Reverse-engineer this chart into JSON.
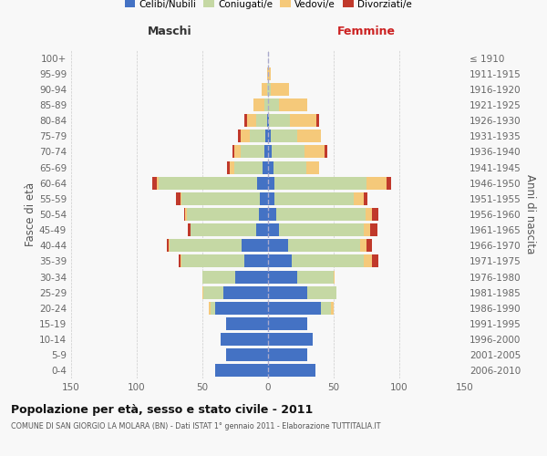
{
  "age_groups": [
    "0-4",
    "5-9",
    "10-14",
    "15-19",
    "20-24",
    "25-29",
    "30-34",
    "35-39",
    "40-44",
    "45-49",
    "50-54",
    "55-59",
    "60-64",
    "65-69",
    "70-74",
    "75-79",
    "80-84",
    "85-89",
    "90-94",
    "95-99",
    "100+"
  ],
  "birth_years": [
    "2006-2010",
    "2001-2005",
    "1996-2000",
    "1991-1995",
    "1986-1990",
    "1981-1985",
    "1976-1980",
    "1971-1975",
    "1966-1970",
    "1961-1965",
    "1956-1960",
    "1951-1955",
    "1946-1950",
    "1941-1945",
    "1936-1940",
    "1931-1935",
    "1926-1930",
    "1921-1925",
    "1916-1920",
    "1911-1915",
    "≤ 1910"
  ],
  "colors": {
    "celibe": "#4472c4",
    "coniugato": "#c5d8a4",
    "vedovo": "#f5c97a",
    "divorziato": "#c0392b"
  },
  "males_celibe": [
    40,
    32,
    36,
    32,
    40,
    34,
    25,
    18,
    20,
    9,
    7,
    6,
    8,
    4,
    3,
    2,
    1,
    0,
    0,
    0,
    0
  ],
  "males_coniugato": [
    0,
    0,
    0,
    0,
    4,
    15,
    25,
    48,
    55,
    50,
    55,
    60,
    75,
    22,
    18,
    12,
    8,
    3,
    1,
    0,
    0
  ],
  "males_vedovo": [
    0,
    0,
    0,
    0,
    1,
    1,
    0,
    1,
    1,
    0,
    1,
    1,
    2,
    3,
    5,
    7,
    7,
    8,
    4,
    1,
    0
  ],
  "males_divorziato": [
    0,
    0,
    0,
    0,
    0,
    0,
    0,
    1,
    1,
    2,
    1,
    3,
    3,
    2,
    1,
    2,
    2,
    0,
    0,
    0,
    0
  ],
  "females_nubile": [
    36,
    30,
    34,
    30,
    40,
    30,
    22,
    18,
    15,
    8,
    6,
    5,
    5,
    4,
    3,
    2,
    1,
    0,
    0,
    0,
    0
  ],
  "females_coniugata": [
    0,
    0,
    0,
    0,
    8,
    22,
    28,
    55,
    55,
    65,
    68,
    60,
    70,
    25,
    25,
    20,
    16,
    8,
    2,
    0,
    0
  ],
  "females_vedova": [
    0,
    0,
    0,
    0,
    2,
    0,
    1,
    6,
    5,
    5,
    5,
    8,
    15,
    10,
    15,
    18,
    20,
    22,
    14,
    2,
    0
  ],
  "females_divorziata": [
    0,
    0,
    0,
    0,
    0,
    0,
    0,
    5,
    4,
    5,
    5,
    3,
    4,
    0,
    2,
    0,
    2,
    0,
    0,
    0,
    0
  ],
  "xlim": [
    -150,
    150
  ],
  "xticks": [
    -150,
    -100,
    -50,
    0,
    50,
    100,
    150
  ],
  "xtick_labels": [
    "150",
    "100",
    "50",
    "0",
    "50",
    "100",
    "150"
  ],
  "title": "Popolazione per età, sesso e stato civile - 2011",
  "subtitle": "COMUNE DI SAN GIORGIO LA MOLARA (BN) - Dati ISTAT 1° gennaio 2011 - Elaborazione TUTTITALIA.IT",
  "ylabel_left": "Fasce di età",
  "ylabel_right": "Anni di nascita",
  "label_maschi": "Maschi",
  "label_femmine": "Femmine",
  "legend_labels": [
    "Celibi/Nubili",
    "Coniugati/e",
    "Vedovi/e",
    "Divorziati/e"
  ],
  "bg_color": "#f8f8f8",
  "bar_height": 0.82
}
